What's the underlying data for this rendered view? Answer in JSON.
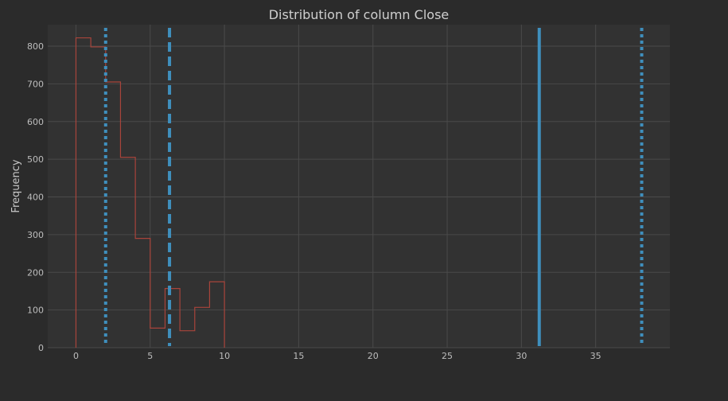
{
  "chart_data": {
    "type": "histogram",
    "title": "Distribution of column Close",
    "xlabel": "",
    "ylabel": "Frequency",
    "xlim": [
      -1.9,
      40
    ],
    "ylim": [
      0,
      857
    ],
    "x_ticks": [
      0,
      5,
      10,
      15,
      20,
      25,
      30,
      35
    ],
    "y_ticks": [
      0,
      100,
      200,
      300,
      400,
      500,
      600,
      700,
      800
    ],
    "grid": true,
    "bins": {
      "edges": [
        0,
        1,
        2,
        3,
        4,
        5,
        6,
        7,
        8,
        9,
        10
      ],
      "counts": [
        822,
        798,
        705,
        505,
        290,
        52,
        157,
        45,
        107,
        175
      ]
    },
    "reference_lines": [
      {
        "x": 2.0,
        "style": "dotted"
      },
      {
        "x": 6.3,
        "style": "dashed"
      },
      {
        "x": 31.2,
        "style": "solid"
      },
      {
        "x": 38.1,
        "style": "dotted"
      }
    ]
  },
  "colors": {
    "background": "#2b2b2b",
    "plot_background": "#323232",
    "grid": "#4a4a4a",
    "histogram": "#a8443b",
    "reference_line": "#3f8fbd",
    "text": "#bdbdbd"
  }
}
